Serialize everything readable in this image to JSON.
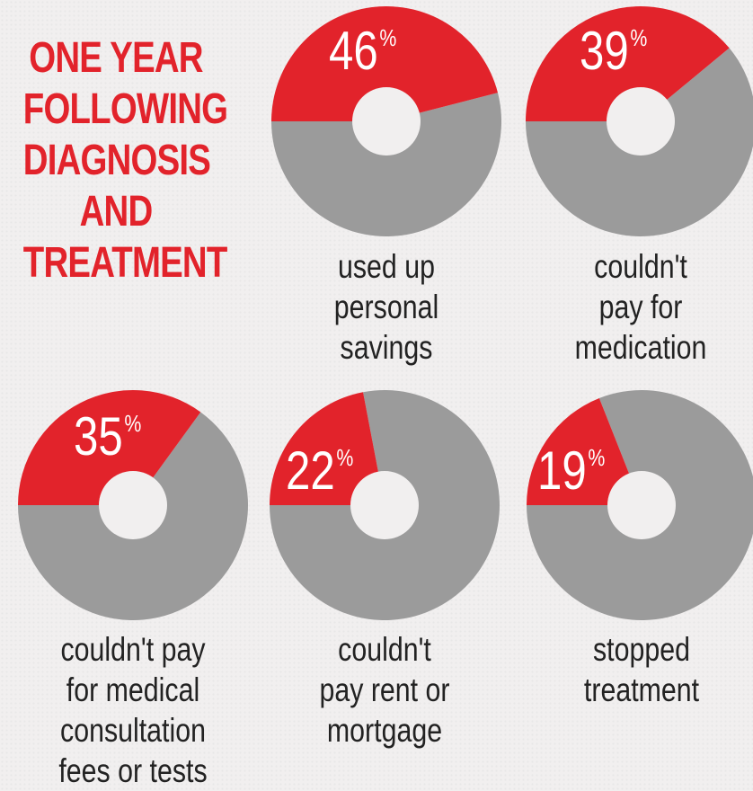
{
  "headline": [
    "ONE YEAR",
    "FOLLOWING",
    "DIAGNOSIS",
    "AND",
    "TREATMENT"
  ],
  "colors": {
    "accent": "#e2232b",
    "remainder": "#9b9b9b",
    "hole": "#f1efef",
    "text": "#222222"
  },
  "chart_data": [
    {
      "type": "pie",
      "value": 46,
      "label": "46%",
      "percent_sign": "%",
      "caption": [
        "used up",
        "personal",
        "savings"
      ]
    },
    {
      "type": "pie",
      "value": 39,
      "label": "39%",
      "percent_sign": "%",
      "caption": [
        "couldn't",
        "pay for",
        "medication"
      ]
    },
    {
      "type": "pie",
      "value": 35,
      "label": "35%",
      "percent_sign": "%",
      "caption": [
        "couldn't pay",
        "for medical",
        "consultation",
        "fees or tests"
      ]
    },
    {
      "type": "pie",
      "value": 22,
      "label": "22%",
      "percent_sign": "%",
      "caption": [
        "couldn't",
        "pay rent or",
        "mortgage"
      ]
    },
    {
      "type": "pie",
      "value": 19,
      "label": "19%",
      "percent_sign": "%",
      "caption": [
        "stopped",
        "treatment"
      ]
    }
  ]
}
